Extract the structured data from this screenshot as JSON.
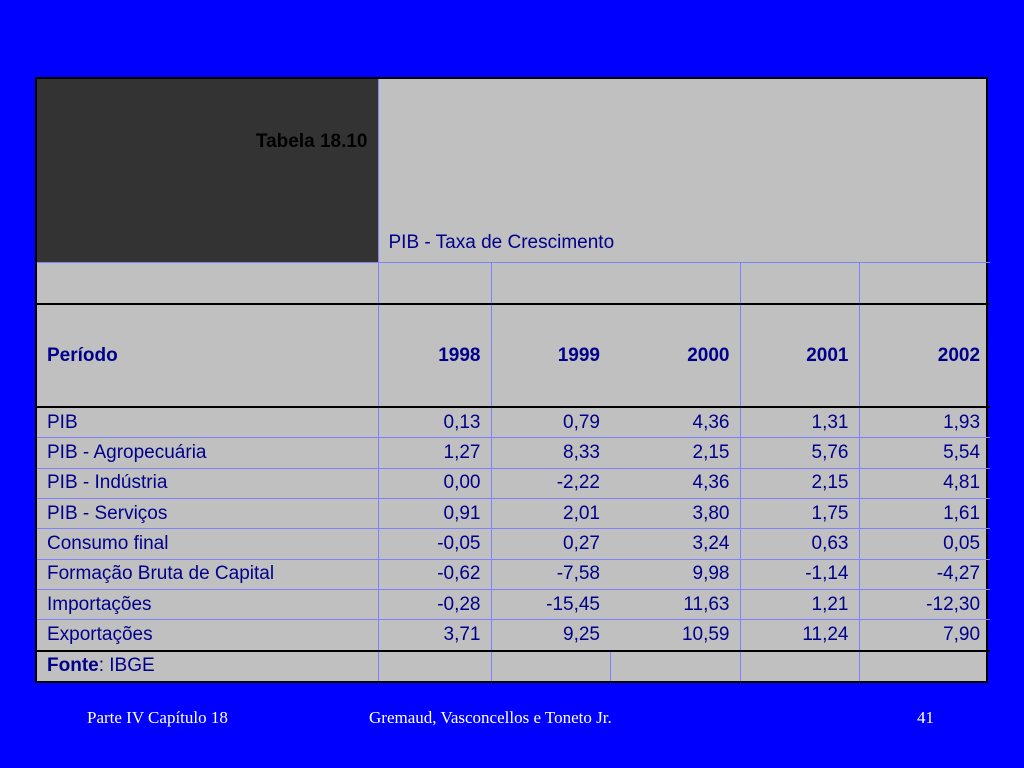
{
  "table": {
    "label": "Tabela 18.10",
    "title": "PIB - Taxa de Crescimento",
    "header": {
      "first": "Período",
      "years": [
        "1998",
        "1999",
        "2000",
        "2001",
        "2002"
      ]
    },
    "rows": [
      {
        "label": "PIB",
        "values": [
          "0,13",
          "0,79",
          "4,36",
          "1,31",
          "1,93"
        ]
      },
      {
        "label": "PIB - Agropecuária",
        "values": [
          "1,27",
          "8,33",
          "2,15",
          "5,76",
          "5,54"
        ]
      },
      {
        "label": "PIB - Indústria",
        "values": [
          "0,00",
          "-2,22",
          "4,36",
          "2,15",
          "4,81"
        ]
      },
      {
        "label": "PIB - Serviços",
        "values": [
          "0,91",
          "2,01",
          "3,80",
          "1,75",
          "1,61"
        ]
      },
      {
        "label": "Consumo final",
        "values": [
          "-0,05",
          "0,27",
          "3,24",
          "0,63",
          "0,05"
        ]
      },
      {
        "label": "Formação Bruta de Capital",
        "values": [
          "-0,62",
          "-7,58",
          "9,98",
          "-1,14",
          "-4,27"
        ]
      },
      {
        "label": "Importações",
        "values": [
          "-0,28",
          "-15,45",
          "11,63",
          "1,21",
          "-12,30"
        ]
      },
      {
        "label": "Exportações",
        "values": [
          "3,71",
          "9,25",
          "10,59",
          "11,24",
          "7,90"
        ]
      }
    ],
    "source": {
      "label": "Fonte",
      "text": ": IBGE"
    }
  },
  "footer": {
    "left": "Parte IV Capítulo 18",
    "center": "Gremaud, Vasconcellos e Toneto Jr.",
    "page": "41"
  },
  "colors": {
    "background": "#0000ff",
    "table": "#c0c0c0",
    "dark_cell": "#333333",
    "text": "#00008b"
  }
}
